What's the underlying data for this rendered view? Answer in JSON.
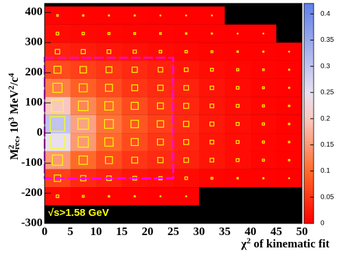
{
  "chart_data": {
    "type": "hist2d",
    "x_label": [
      "χ",
      "2",
      " of kinematic fit"
    ],
    "y_label": [
      "M",
      "2",
      "rec",
      ", 10",
      "3",
      " MeV",
      "2",
      "/c",
      "4"
    ],
    "annotation": "√s>1.58 GeV",
    "xlim": [
      0,
      50
    ],
    "xticks": [
      0,
      5,
      10,
      15,
      20,
      25,
      30,
      35,
      40,
      45,
      50
    ],
    "ylim": [
      -300,
      430
    ],
    "yticks": [
      -300,
      -200,
      -100,
      0,
      100,
      200,
      300,
      400
    ],
    "xbins": [
      0,
      5,
      10,
      15,
      20,
      25,
      30,
      35,
      40,
      45,
      50
    ],
    "ybins": [
      -300,
      -240,
      -180,
      -120,
      -60,
      0,
      60,
      120,
      180,
      240,
      300,
      360,
      420
    ],
    "z": [
      [
        0,
        0,
        0,
        0,
        0,
        0,
        0,
        0,
        0,
        0
      ],
      [
        0.01,
        0.005,
        0.003,
        0.002,
        0.001,
        0.001,
        0,
        0,
        0,
        0
      ],
      [
        0.06,
        0.04,
        0.03,
        0.02,
        0.015,
        0.01,
        0.005,
        0.003,
        0.002,
        0.001
      ],
      [
        0.15,
        0.1,
        0.07,
        0.05,
        0.04,
        0.03,
        0.02,
        0.012,
        0.006,
        0.003
      ],
      [
        0.25,
        0.15,
        0.1,
        0.07,
        0.05,
        0.035,
        0.02,
        0.012,
        0.006,
        0.003
      ],
      [
        0.3,
        0.16,
        0.11,
        0.08,
        0.06,
        0.04,
        0.022,
        0.013,
        0.007,
        0.003
      ],
      [
        0.2,
        0.13,
        0.1,
        0.07,
        0.05,
        0.035,
        0.02,
        0.012,
        0.006,
        0.003
      ],
      [
        0.12,
        0.09,
        0.07,
        0.05,
        0.04,
        0.03,
        0.018,
        0.01,
        0.005,
        0.002
      ],
      [
        0.07,
        0.06,
        0.05,
        0.04,
        0.03,
        0.02,
        0.012,
        0.007,
        0.004,
        0.002
      ],
      [
        0.03,
        0.025,
        0.02,
        0.015,
        0.01,
        0.008,
        0.005,
        0.003,
        0.002,
        0.001
      ],
      [
        0.01,
        0.008,
        0.006,
        0.005,
        0.004,
        0.003,
        0.002,
        0.001,
        0.001,
        0
      ],
      [
        0.004,
        0.003,
        0.002,
        0.002,
        0.001,
        0.001,
        0.001,
        0,
        0,
        0
      ]
    ],
    "box_color": "#ffff00",
    "zlim": [
      0,
      0.42
    ],
    "zticks": [
      0,
      0.05,
      0.1,
      0.15,
      0.2,
      0.25,
      0.3,
      0.35,
      0.4
    ],
    "colorscale": [
      {
        "value": 0,
        "color": "#ff0000"
      },
      {
        "value": 0.1,
        "color": "#ff6a2a"
      },
      {
        "value": 0.2,
        "color": "#f8c8c0"
      },
      {
        "value": 0.25,
        "color": "#e8e0f0"
      },
      {
        "value": 0.42,
        "color": "#6080e8"
      }
    ],
    "region": {
      "xlim": [
        0,
        25
      ],
      "ylim": [
        -150,
        250
      ],
      "color": "#ff00ff"
    },
    "background": "#000000"
  }
}
